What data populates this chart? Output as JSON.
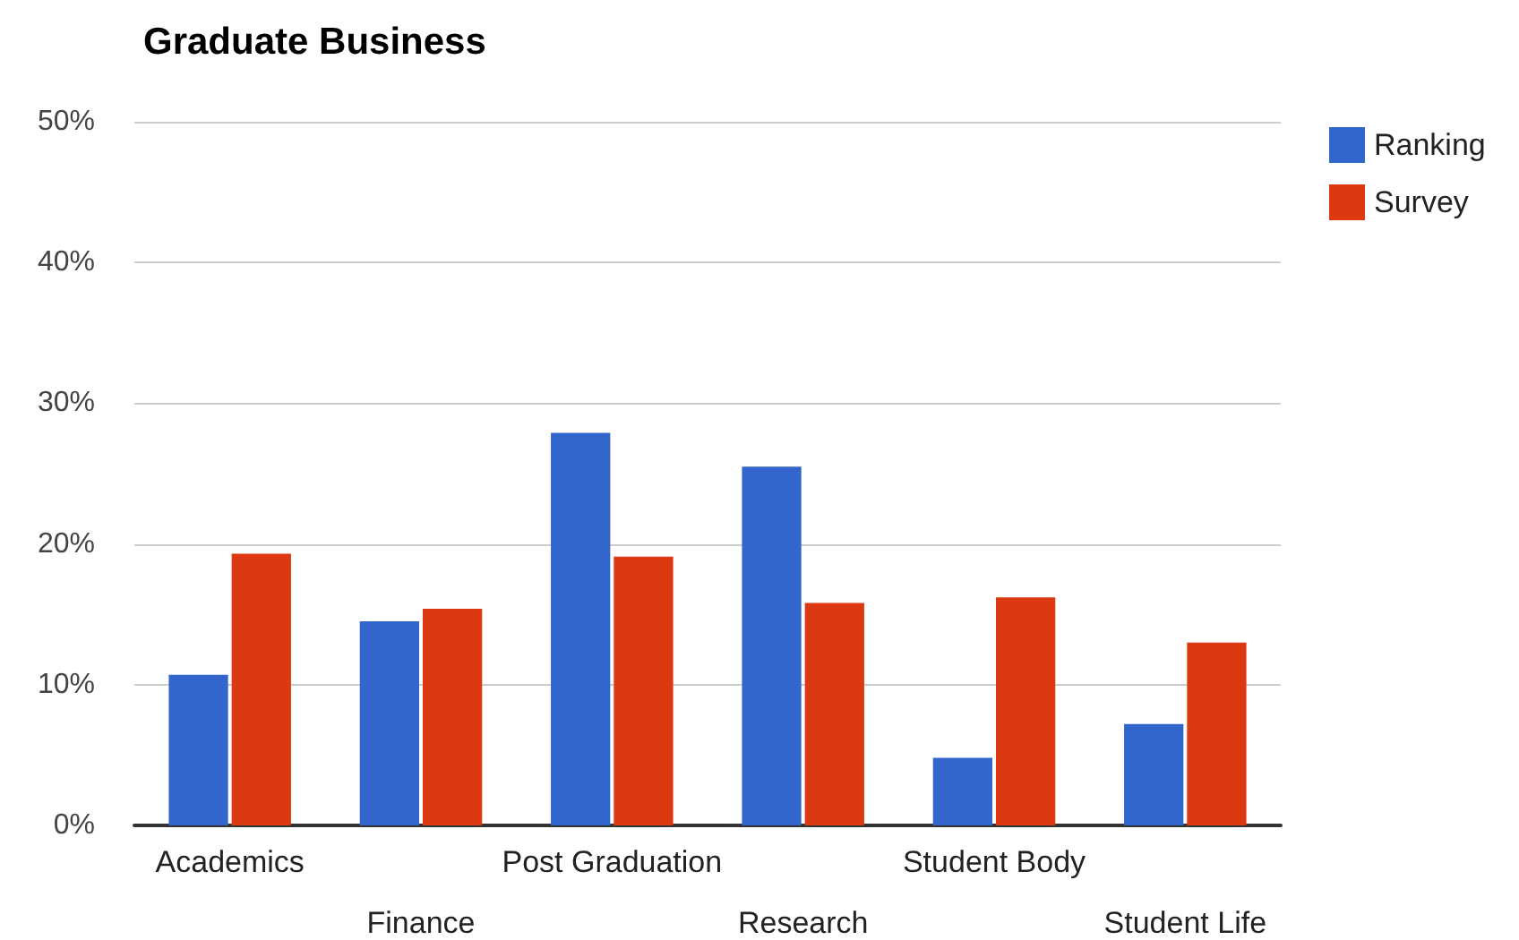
{
  "chart_data": {
    "type": "bar",
    "title": "Graduate Business",
    "categories": [
      "Academics",
      "Finance",
      "Post Graduation",
      "Research",
      "Student Body",
      "Student Life"
    ],
    "series": [
      {
        "name": "Ranking",
        "color": "#3366cc",
        "values": [
          10.7,
          14.5,
          27.9,
          25.5,
          4.8,
          7.2
        ]
      },
      {
        "name": "Survey",
        "color": "#dc3912",
        "values": [
          19.3,
          15.4,
          19.1,
          15.8,
          16.2,
          13.0
        ]
      }
    ],
    "ylim": [
      0,
      50
    ],
    "yticks": [
      {
        "value": 0,
        "label": "0%"
      },
      {
        "value": 10,
        "label": "10%"
      },
      {
        "value": 20,
        "label": "20%"
      },
      {
        "value": 30,
        "label": "30%"
      },
      {
        "value": 40,
        "label": "40%"
      },
      {
        "value": 50,
        "label": "50%"
      }
    ],
    "grid": "y",
    "legend": "top right"
  }
}
